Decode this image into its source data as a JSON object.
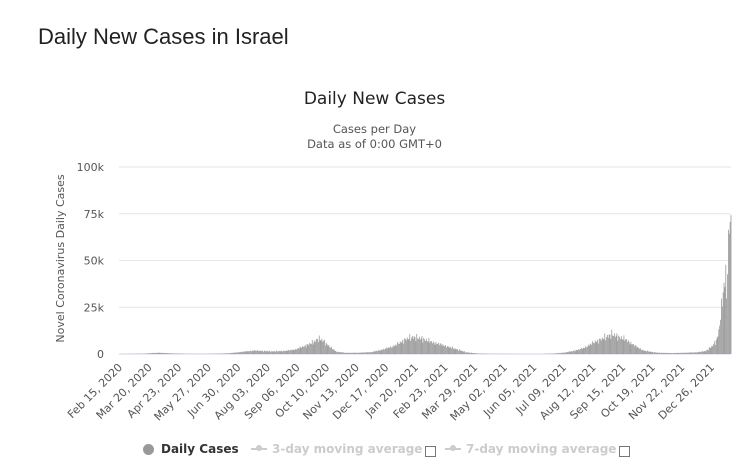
{
  "page": {
    "title": "Daily New Cases in Israel"
  },
  "chart_data": {
    "type": "bar",
    "title": "Daily New Cases",
    "subtitle": "Cases per Day",
    "subtitle2": "Data as of 0:00 GMT+0",
    "ylabel": "Novel Coronavirus Daily Cases",
    "xlabel": "",
    "ylim": [
      0,
      100000
    ],
    "y_ticks": [
      0,
      25000,
      50000,
      75000,
      100000
    ],
    "y_tick_labels": [
      "0",
      "25k",
      "50k",
      "75k",
      "100k"
    ],
    "x_range": [
      "2020-02-15",
      "2022-01-18"
    ],
    "x_tick_labels": [
      "Feb 15, 2020",
      "Mar 20, 2020",
      "Apr 23, 2020",
      "May 27, 2020",
      "Jun 30, 2020",
      "Aug 03, 2020",
      "Sep 06, 2020",
      "Oct 10, 2020",
      "Nov 13, 2020",
      "Dec 17, 2020",
      "Jan 20, 2021",
      "Feb 23, 2021",
      "Mar 29, 2021",
      "May 02, 2021",
      "Jun 05, 2021",
      "Jul 09, 2021",
      "Aug 12, 2021",
      "Sep 15, 2021",
      "Oct 19, 2021",
      "Nov 22, 2021",
      "Dec 26, 2021"
    ],
    "grid": true,
    "legend_position": "bottom-center",
    "bar_color": "#999999",
    "series": [
      {
        "name": "Daily Cases",
        "visible": true,
        "points": [
          [
            "2020-02-15",
            0
          ],
          [
            "2020-03-15",
            150
          ],
          [
            "2020-03-25",
            550
          ],
          [
            "2020-04-02",
            650
          ],
          [
            "2020-04-15",
            350
          ],
          [
            "2020-05-01",
            100
          ],
          [
            "2020-05-20",
            30
          ],
          [
            "2020-06-05",
            150
          ],
          [
            "2020-06-20",
            400
          ],
          [
            "2020-07-01",
            900
          ],
          [
            "2020-07-10",
            1400
          ],
          [
            "2020-07-20",
            1850
          ],
          [
            "2020-07-30",
            1600
          ],
          [
            "2020-08-10",
            1400
          ],
          [
            "2020-08-25",
            1700
          ],
          [
            "2020-09-05",
            2500
          ],
          [
            "2020-09-15",
            4200
          ],
          [
            "2020-09-25",
            6200
          ],
          [
            "2020-10-01",
            8200
          ],
          [
            "2020-10-07",
            7000
          ],
          [
            "2020-10-15",
            3500
          ],
          [
            "2020-10-22",
            1200
          ],
          [
            "2020-11-01",
            650
          ],
          [
            "2020-11-15",
            650
          ],
          [
            "2020-12-01",
            1000
          ],
          [
            "2020-12-15",
            2500
          ],
          [
            "2020-12-28",
            4500
          ],
          [
            "2021-01-10",
            8000
          ],
          [
            "2021-01-18",
            9000
          ],
          [
            "2021-01-28",
            8200
          ],
          [
            "2021-02-10",
            6200
          ],
          [
            "2021-02-25",
            4200
          ],
          [
            "2021-03-10",
            2400
          ],
          [
            "2021-03-20",
            900
          ],
          [
            "2021-04-01",
            300
          ],
          [
            "2021-04-15",
            100
          ],
          [
            "2021-05-15",
            30
          ],
          [
            "2021-06-15",
            20
          ],
          [
            "2021-06-28",
            250
          ],
          [
            "2021-07-10",
            700
          ],
          [
            "2021-07-20",
            1500
          ],
          [
            "2021-08-01",
            3000
          ],
          [
            "2021-08-15",
            6500
          ],
          [
            "2021-08-25",
            8500
          ],
          [
            "2021-09-03",
            10500
          ],
          [
            "2021-09-12",
            9000
          ],
          [
            "2021-09-20",
            7500
          ],
          [
            "2021-10-01",
            4000
          ],
          [
            "2021-10-10",
            1800
          ],
          [
            "2021-10-25",
            700
          ],
          [
            "2021-11-10",
            500
          ],
          [
            "2021-11-25",
            650
          ],
          [
            "2021-12-10",
            900
          ],
          [
            "2021-12-20",
            1600
          ],
          [
            "2021-12-27",
            4000
          ],
          [
            "2022-01-01",
            7000
          ],
          [
            "2022-01-04",
            12000
          ],
          [
            "2022-01-06",
            20000
          ],
          [
            "2022-01-08",
            28000
          ],
          [
            "2022-01-10",
            36000
          ],
          [
            "2022-01-12",
            44000
          ],
          [
            "2022-01-13",
            30000
          ],
          [
            "2022-01-14",
            52000
          ],
          [
            "2022-01-15",
            60000
          ],
          [
            "2022-01-16",
            69000
          ],
          [
            "2022-01-17",
            72000
          ],
          [
            "2022-01-18",
            68000
          ]
        ]
      },
      {
        "name": "3-day moving average",
        "visible": false
      },
      {
        "name": "7-day moving average",
        "visible": false
      }
    ]
  }
}
